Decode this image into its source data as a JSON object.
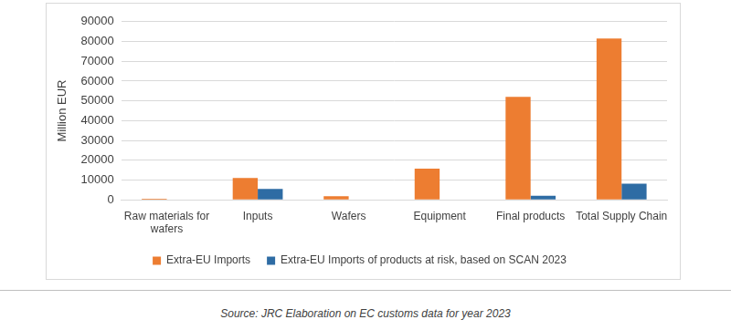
{
  "chart_data": {
    "type": "bar",
    "ylabel": "Million EUR",
    "categories": [
      "Raw materials for wafers",
      "Inputs",
      "Wafers",
      "Equipment",
      "Final products",
      "Total Supply Chain"
    ],
    "series": [
      {
        "name": "Extra-EU Imports",
        "color": "#ed7d31",
        "values": [
          500,
          11000,
          1800,
          15700,
          52000,
          81500
        ]
      },
      {
        "name": "Extra-EU Imports of products at risk, based on SCAN 2023",
        "color": "#2e6ca4",
        "values": [
          0,
          5500,
          0,
          200,
          2000,
          8100
        ]
      }
    ],
    "ylim": [
      0,
      90000
    ],
    "yticks": [
      0,
      10000,
      20000,
      30000,
      40000,
      50000,
      60000,
      70000,
      80000,
      90000
    ],
    "grid": true,
    "legend": "bottom",
    "caption": "Source: JRC Elaboration on EC customs data for year 2023"
  }
}
